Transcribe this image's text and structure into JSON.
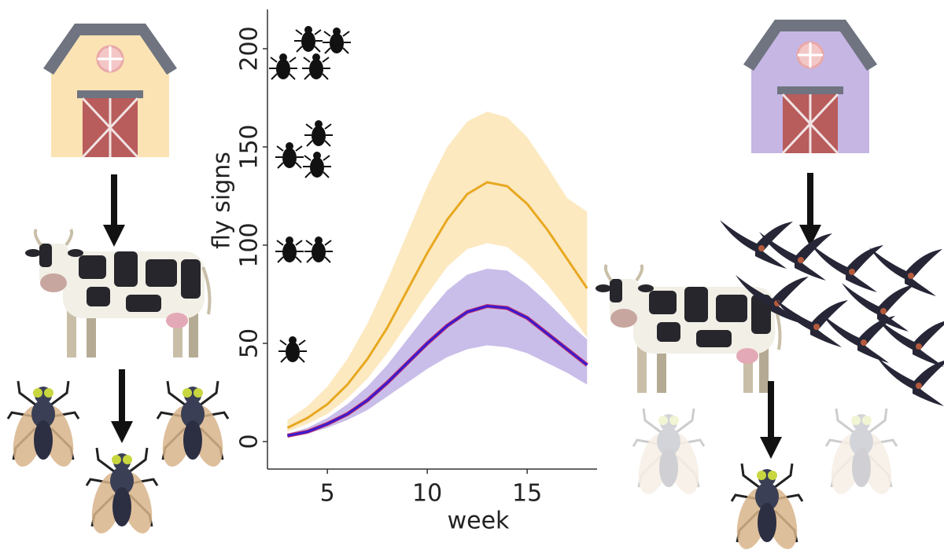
{
  "chart_data": {
    "type": "line",
    "xlabel": "week",
    "ylabel": "fly signs",
    "x": [
      3,
      4,
      5,
      6,
      7,
      8,
      9,
      10,
      11,
      12,
      13,
      14,
      15,
      16,
      17,
      18
    ],
    "series": [
      {
        "color": "#e8a820",
        "band_color": "#fbe4b0",
        "values": [
          7,
          12,
          19,
          29,
          42,
          58,
          77,
          96,
          113,
          126,
          132,
          130,
          121,
          108,
          93,
          78
        ],
        "lower": [
          5,
          9,
          14,
          22,
          32,
          45,
          60,
          75,
          89,
          98,
          101,
          99,
          91,
          80,
          67,
          53
        ],
        "upper": [
          11,
          18,
          28,
          42,
          60,
          82,
          106,
          130,
          150,
          163,
          168,
          165,
          155,
          140,
          124,
          117
        ]
      },
      {
        "color": "#3a1ad0",
        "band_color": "#bcaee4",
        "values": [
          3,
          5,
          9,
          14,
          21,
          30,
          40,
          50,
          59,
          66,
          69,
          68,
          63,
          55,
          47,
          39
        ],
        "lower": [
          2,
          4,
          7,
          11,
          16,
          23,
          30,
          37,
          43,
          47,
          49,
          48,
          45,
          40,
          35,
          29
        ],
        "upper": [
          4,
          7,
          12,
          19,
          28,
          39,
          52,
          65,
          77,
          85,
          88,
          87,
          80,
          71,
          61,
          52
        ]
      }
    ],
    "xlim": [
      2,
      18.5
    ],
    "xticks": [
      5,
      10,
      15
    ],
    "ylim": [
      -14,
      220
    ],
    "yticks": [
      0,
      50,
      100,
      150,
      200
    ]
  }
}
